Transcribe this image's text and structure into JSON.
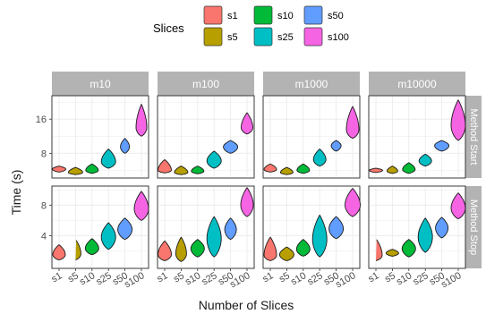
{
  "chart_data": {
    "type": "violin",
    "xlabel": "Number of Slices",
    "ylabel": "Time (s)",
    "legend": {
      "title": "Slices",
      "position": "top",
      "entries": [
        {
          "name": "s1",
          "color": "#F8766D"
        },
        {
          "name": "s5",
          "color": "#B79F00"
        },
        {
          "name": "s10",
          "color": "#00BA38"
        },
        {
          "name": "s25",
          "color": "#00BFC4"
        },
        {
          "name": "s50",
          "color": "#619CFF"
        },
        {
          "name": "s100",
          "color": "#F564E3"
        }
      ]
    },
    "categories": [
      "s1",
      "s5",
      "s10",
      "s25",
      "s50",
      "s100"
    ],
    "facet_columns": [
      "m10",
      "m100",
      "m1000",
      "m10000"
    ],
    "facet_rows": [
      {
        "label": "Method Start",
        "yticks": [
          8,
          16
        ],
        "ylim": [
          2.2,
          21.5
        ]
      },
      {
        "label": "Method Stop",
        "yticks": [
          4,
          8
        ],
        "ylim": [
          -0.3,
          10.5
        ]
      }
    ],
    "grid": true,
    "panels": [
      {
        "row": 0,
        "col": 0,
        "violins": [
          {
            "min": 3.6,
            "max": 5.0,
            "mode": 4.3,
            "width": 0.75
          },
          {
            "min": 3.0,
            "max": 4.7,
            "mode": 3.5,
            "width": 0.8
          },
          {
            "min": 3.3,
            "max": 5.5,
            "mode": 4.0,
            "width": 0.7
          },
          {
            "min": 4.5,
            "max": 9.0,
            "mode": 6.0,
            "width": 0.8
          },
          {
            "min": 8.0,
            "max": 11.5,
            "mode": 9.5,
            "width": 0.5
          },
          {
            "min": 12.0,
            "max": 19.5,
            "mode": 14.0,
            "width": 0.6
          }
        ]
      },
      {
        "row": 0,
        "col": 1,
        "violins": [
          {
            "min": 3.4,
            "max": 6.5,
            "mode": 4.0,
            "width": 0.75
          },
          {
            "min": 3.0,
            "max": 5.0,
            "mode": 3.5,
            "width": 0.75
          },
          {
            "min": 3.2,
            "max": 5.0,
            "mode": 3.8,
            "width": 0.7
          },
          {
            "min": 4.5,
            "max": 8.5,
            "mode": 6.2,
            "width": 0.8
          },
          {
            "min": 8.0,
            "max": 11.0,
            "mode": 9.5,
            "width": 0.8
          },
          {
            "min": 12.5,
            "max": 17.5,
            "mode": 14.0,
            "width": 0.65
          }
        ]
      },
      {
        "row": 0,
        "col": 2,
        "violins": [
          {
            "min": 3.6,
            "max": 5.5,
            "mode": 4.2,
            "width": 0.7
          },
          {
            "min": 3.0,
            "max": 4.7,
            "mode": 3.5,
            "width": 0.7
          },
          {
            "min": 3.3,
            "max": 5.5,
            "mode": 4.0,
            "width": 0.7
          },
          {
            "min": 5.0,
            "max": 9.0,
            "mode": 6.5,
            "width": 0.7
          },
          {
            "min": 8.5,
            "max": 11.0,
            "mode": 9.8,
            "width": 0.55
          },
          {
            "min": 11.5,
            "max": 19.0,
            "mode": 13.5,
            "width": 0.7
          }
        ]
      },
      {
        "row": 0,
        "col": 3,
        "violins": [
          {
            "min": 3.5,
            "max": 4.5,
            "mode": 4.0,
            "width": 0.75
          },
          {
            "min": 3.3,
            "max": 5.0,
            "mode": 3.8,
            "width": 0.6
          },
          {
            "min": 3.3,
            "max": 5.8,
            "mode": 4.2,
            "width": 0.7
          },
          {
            "min": 5.0,
            "max": 7.8,
            "mode": 6.2,
            "width": 0.7
          },
          {
            "min": 8.5,
            "max": 11.0,
            "mode": 9.8,
            "width": 0.8
          },
          {
            "min": 11.0,
            "max": 20.5,
            "mode": 14.5,
            "width": 0.8
          }
        ]
      },
      {
        "row": 1,
        "col": 0,
        "violins": [
          {
            "min": 0.8,
            "max": 2.8,
            "mode": 1.5,
            "width": 0.7
          },
          {
            "min": 0.8,
            "max": 3.5,
            "mode": 1.6,
            "width": 0.6
          },
          {
            "min": 1.5,
            "max": 3.6,
            "mode": 2.3,
            "width": 0.75
          },
          {
            "min": 2.2,
            "max": 5.7,
            "mode": 3.8,
            "width": 0.8
          },
          {
            "min": 3.5,
            "max": 6.3,
            "mode": 4.8,
            "width": 0.8
          },
          {
            "min": 6.0,
            "max": 9.8,
            "mode": 7.5,
            "width": 0.8
          }
        ]
      },
      {
        "row": 1,
        "col": 1,
        "violins": [
          {
            "min": 0.7,
            "max": 3.3,
            "mode": 1.5,
            "width": 0.75
          },
          {
            "min": 0.6,
            "max": 3.8,
            "mode": 1.6,
            "width": 0.6
          },
          {
            "min": 1.2,
            "max": 3.5,
            "mode": 2.3,
            "width": 0.75
          },
          {
            "min": 1.2,
            "max": 6.5,
            "mode": 3.6,
            "width": 0.8
          },
          {
            "min": 3.5,
            "max": 6.3,
            "mode": 4.8,
            "width": 0.65
          },
          {
            "min": 6.5,
            "max": 10.3,
            "mode": 8.0,
            "width": 0.7
          }
        ]
      },
      {
        "row": 1,
        "col": 2,
        "violins": [
          {
            "min": 0.7,
            "max": 3.8,
            "mode": 1.4,
            "width": 0.7
          },
          {
            "min": 0.7,
            "max": 2.5,
            "mode": 1.5,
            "width": 0.8
          },
          {
            "min": 1.3,
            "max": 3.5,
            "mode": 2.2,
            "width": 0.75
          },
          {
            "min": 1.2,
            "max": 6.7,
            "mode": 3.5,
            "width": 0.8
          },
          {
            "min": 3.6,
            "max": 6.5,
            "mode": 4.9,
            "width": 0.8
          },
          {
            "min": 6.5,
            "max": 10.2,
            "mode": 8.0,
            "width": 0.85
          }
        ]
      },
      {
        "row": 1,
        "col": 3,
        "violins": [
          {
            "min": 0.7,
            "max": 3.6,
            "mode": 1.4,
            "width": 0.7
          },
          {
            "min": 1.3,
            "max": 2.2,
            "mode": 1.7,
            "width": 0.7
          },
          {
            "min": 1.2,
            "max": 3.5,
            "mode": 2.3,
            "width": 0.75
          },
          {
            "min": 1.8,
            "max": 6.3,
            "mode": 3.8,
            "width": 0.8
          },
          {
            "min": 3.7,
            "max": 6.4,
            "mode": 5.0,
            "width": 0.7
          },
          {
            "min": 6.2,
            "max": 9.6,
            "mode": 7.6,
            "width": 0.8
          }
        ]
      }
    ]
  }
}
